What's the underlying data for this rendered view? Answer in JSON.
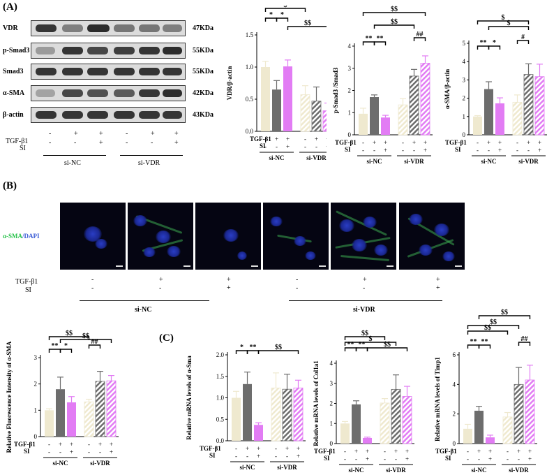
{
  "panels": {
    "A": "(A)",
    "B": "(B)",
    "C": "(C)"
  },
  "treatments": {
    "tgf": "TGF-β1",
    "si": "SI",
    "tgf_row": [
      "-",
      "+",
      "+",
      "-",
      "+",
      "+"
    ],
    "si_row": [
      "-",
      "-",
      "+",
      "-",
      "-",
      "+"
    ]
  },
  "groups": {
    "nc": "si-NC",
    "vdr": "si-VDR"
  },
  "blot": {
    "rows": [
      {
        "label": "VDR",
        "kda": "47KDa"
      },
      {
        "label": "p-Smad3",
        "kda": "55KDa"
      },
      {
        "label": "Smad3",
        "kda": "55KDa"
      },
      {
        "label": "α-SMA",
        "kda": "42KDa"
      },
      {
        "label": "β-actin",
        "kda": "43KDa"
      }
    ]
  },
  "if_label": {
    "marker": "α-SMA",
    "sep": "/",
    "dapi": "DAPI"
  },
  "colors": {
    "ctrl": "#efe9cf",
    "tgf": "#6d6d6d",
    "si": "#e27cf4",
    "ink": "#000000"
  },
  "chart_data": [
    {
      "type": "bar",
      "ylabel": "VDR/β-actin",
      "ylim": [
        0,
        1.5
      ],
      "ticks": [
        "0.0",
        "0.5",
        "1.0",
        "1.5"
      ],
      "series": [
        {
          "values": [
            1.0,
            0.65,
            1.01,
            0.57,
            0.47,
            0.32
          ],
          "errors": [
            0.09,
            0.14,
            0.1,
            0.14,
            0.22,
            0.12
          ]
        }
      ],
      "annotations": [
        {
          "text": "*"
        },
        {
          "text": "*"
        },
        {
          "text": "$"
        },
        {
          "text": "$$"
        }
      ]
    },
    {
      "type": "bar",
      "ylabel": "p-Smad3 /Smad3",
      "ylim": [
        0,
        4
      ],
      "ticks": [
        "0",
        "1",
        "2",
        "3",
        "4"
      ],
      "series": [
        {
          "values": [
            0.95,
            1.7,
            0.78,
            1.35,
            2.65,
            3.23
          ],
          "errors": [
            0.25,
            0.1,
            0.1,
            0.28,
            0.3,
            0.33
          ]
        }
      ],
      "annotations": [
        {
          "text": "**"
        },
        {
          "text": "**"
        },
        {
          "text": "##"
        },
        {
          "text": "$$"
        },
        {
          "text": "$$"
        }
      ]
    },
    {
      "type": "bar",
      "ylabel": "α-SMA/β-actin",
      "ylim": [
        0,
        5
      ],
      "ticks": [
        "0",
        "1",
        "2",
        "3",
        "4",
        "5"
      ],
      "series": [
        {
          "values": [
            1.0,
            2.5,
            1.72,
            1.78,
            3.3,
            3.18
          ],
          "errors": [
            0.05,
            0.4,
            0.3,
            0.4,
            0.58,
            0.68
          ]
        }
      ],
      "annotations": [
        {
          "text": "**"
        },
        {
          "text": "*"
        },
        {
          "text": "#"
        },
        {
          "text": "$"
        },
        {
          "text": "$"
        }
      ]
    },
    {
      "type": "bar",
      "ylabel": "Relative Fluorescence Intensity of α-SMA",
      "ylim": [
        0,
        3
      ],
      "ticks": [
        "0",
        "1",
        "2",
        "3"
      ],
      "series": [
        {
          "values": [
            1.0,
            1.8,
            1.3,
            1.32,
            2.1,
            2.12
          ],
          "errors": [
            0.06,
            0.46,
            0.22,
            0.1,
            0.38,
            0.2
          ]
        }
      ],
      "annotations": [
        {
          "text": "**"
        },
        {
          "text": "*"
        },
        {
          "text": "##"
        },
        {
          "text": "$$"
        },
        {
          "text": "$$"
        }
      ]
    },
    {
      "type": "bar",
      "ylabel": "Relative mRNA levels of α-Sma",
      "ylim": [
        0,
        2.0
      ],
      "ticks": [
        "0.0",
        "0.5",
        "1.0",
        "1.5",
        "2.0"
      ],
      "series": [
        {
          "values": [
            1.0,
            1.32,
            0.37,
            1.23,
            1.2,
            1.23
          ],
          "errors": [
            0.15,
            0.28,
            0.05,
            0.35,
            0.35,
            0.18
          ]
        }
      ],
      "annotations": [
        {
          "text": "*"
        },
        {
          "text": "**"
        },
        {
          "text": "$$"
        }
      ]
    },
    {
      "type": "bar",
      "ylabel": "Relative mRNA levels of Col1a1",
      "ylim": [
        0,
        4
      ],
      "ticks": [
        "0",
        "1",
        "2",
        "3",
        "4"
      ],
      "series": [
        {
          "values": [
            1.0,
            1.95,
            0.28,
            2.02,
            2.7,
            2.35
          ],
          "errors": [
            0.1,
            0.18,
            0.04,
            0.22,
            0.72,
            0.5
          ]
        }
      ],
      "annotations": [
        {
          "text": "**"
        },
        {
          "text": "**"
        },
        {
          "text": "$$"
        },
        {
          "text": "$"
        },
        {
          "text": "$$"
        }
      ]
    },
    {
      "type": "bar",
      "ylabel": "Relative mRNA levels of Timp1",
      "ylim": [
        0,
        6
      ],
      "ticks": [
        "0",
        "2",
        "4",
        "6"
      ],
      "series": [
        {
          "values": [
            1.0,
            2.22,
            0.42,
            1.8,
            4.0,
            4.3
          ],
          "errors": [
            0.3,
            0.3,
            0.15,
            0.3,
            1.15,
            1.0
          ]
        }
      ],
      "annotations": [
        {
          "text": "**"
        },
        {
          "text": "**"
        },
        {
          "text": "##"
        },
        {
          "text": "$$"
        },
        {
          "text": "$$"
        },
        {
          "text": "$$"
        }
      ]
    }
  ]
}
